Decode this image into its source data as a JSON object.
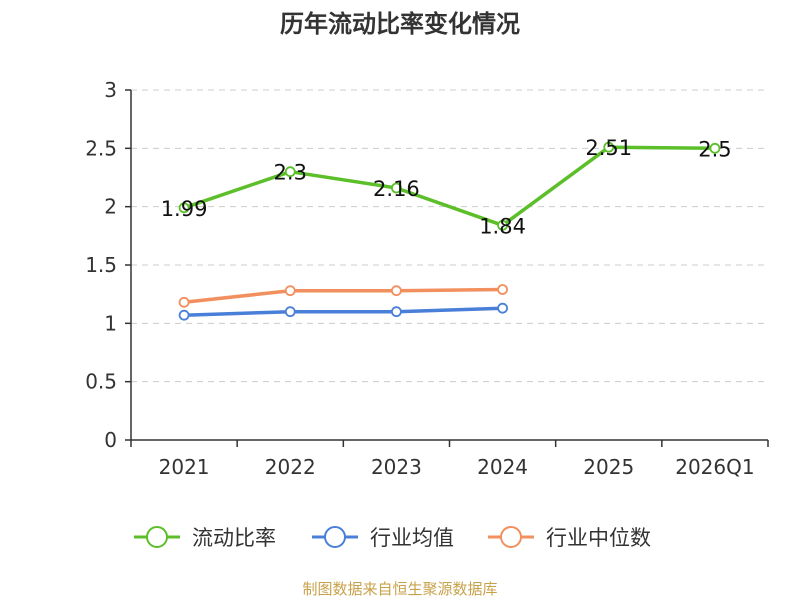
{
  "chart_data": {
    "type": "line",
    "title": "历年流动比率变化情况",
    "categories": [
      "2021",
      "2022",
      "2023",
      "2024",
      "2025",
      "2026Q1"
    ],
    "ylim": [
      0,
      3
    ],
    "yticks": [
      "0",
      "0.5",
      "1",
      "1.5",
      "2",
      "2.5",
      "3"
    ],
    "grid": true,
    "legend_position": "bottom",
    "series": [
      {
        "name": "流动比率",
        "color": "#5cbf2a",
        "values": [
          1.99,
          2.3,
          2.16,
          1.84,
          2.51,
          2.5
        ],
        "labels": [
          "1.99",
          "2.3",
          "2.16",
          "1.84",
          "2.51",
          "2.5"
        ]
      },
      {
        "name": "行业均值",
        "color": "#4a7fd9",
        "values": [
          1.07,
          1.1,
          1.1,
          1.13,
          null,
          null
        ]
      },
      {
        "name": "行业中位数",
        "color": "#f28f5e",
        "values": [
          1.18,
          1.28,
          1.28,
          1.29,
          null,
          null
        ]
      }
    ],
    "source": "制图数据来自恒生聚源数据库"
  }
}
